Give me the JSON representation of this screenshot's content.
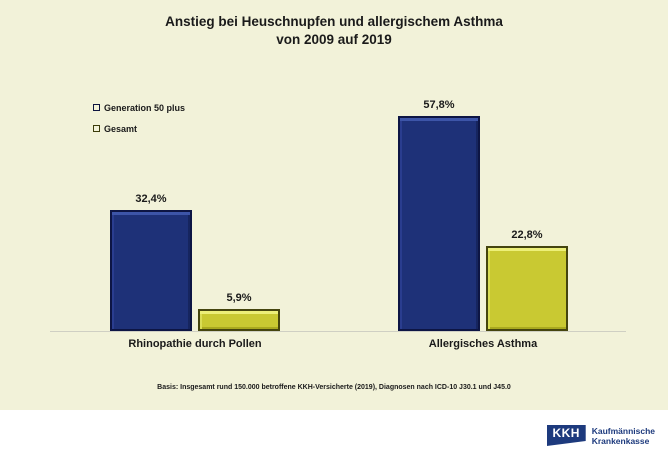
{
  "title": {
    "line1": "Anstieg bei Heuschnupfen und allergischem Asthma",
    "line2": "von 2009 auf 2019"
  },
  "legend": {
    "items": [
      {
        "label": "Generation 50 plus",
        "color": "#1e3178"
      },
      {
        "label": "Gesamt",
        "color": "#c9c932"
      }
    ]
  },
  "chart_data": {
    "type": "bar",
    "title": "Anstieg bei Heuschnupfen und allergischem Asthma von 2009 auf 2019",
    "categories": [
      "Rhinopathie durch Pollen",
      "Allergisches Asthma"
    ],
    "series": [
      {
        "name": "Generation 50 plus",
        "values": [
          32.4,
          57.8
        ],
        "labels": [
          "32,4%",
          "57,8%"
        ],
        "color": "#1e3178"
      },
      {
        "name": "Gesamt",
        "values": [
          5.9,
          22.8
        ],
        "labels": [
          "5,9%",
          "22,8%"
        ],
        "color": "#c9c932"
      }
    ],
    "unit": "%",
    "xlabel": "",
    "ylabel": "",
    "ylim": [
      0,
      60
    ],
    "grid": false,
    "axis_visible": "x-baseline-only",
    "legend_position": "top-left"
  },
  "footnote": "Basis: Insgesamt rund 150.000 betroffene KKH-Versicherte (2019), Diagnosen nach ICD-10 J30.1 und J45.0",
  "logo": {
    "abbr": "KKH",
    "name_line1": "Kaufmännische",
    "name_line2": "Krankenkasse",
    "color": "#1d3a7d"
  },
  "colors": {
    "background": "#f2f2d9",
    "footer_background": "#ffffff",
    "bar_blue": "#1e3178",
    "bar_yellow": "#c9c932",
    "axis_line": "#cfcfc3",
    "text": "#1a1a1a"
  }
}
